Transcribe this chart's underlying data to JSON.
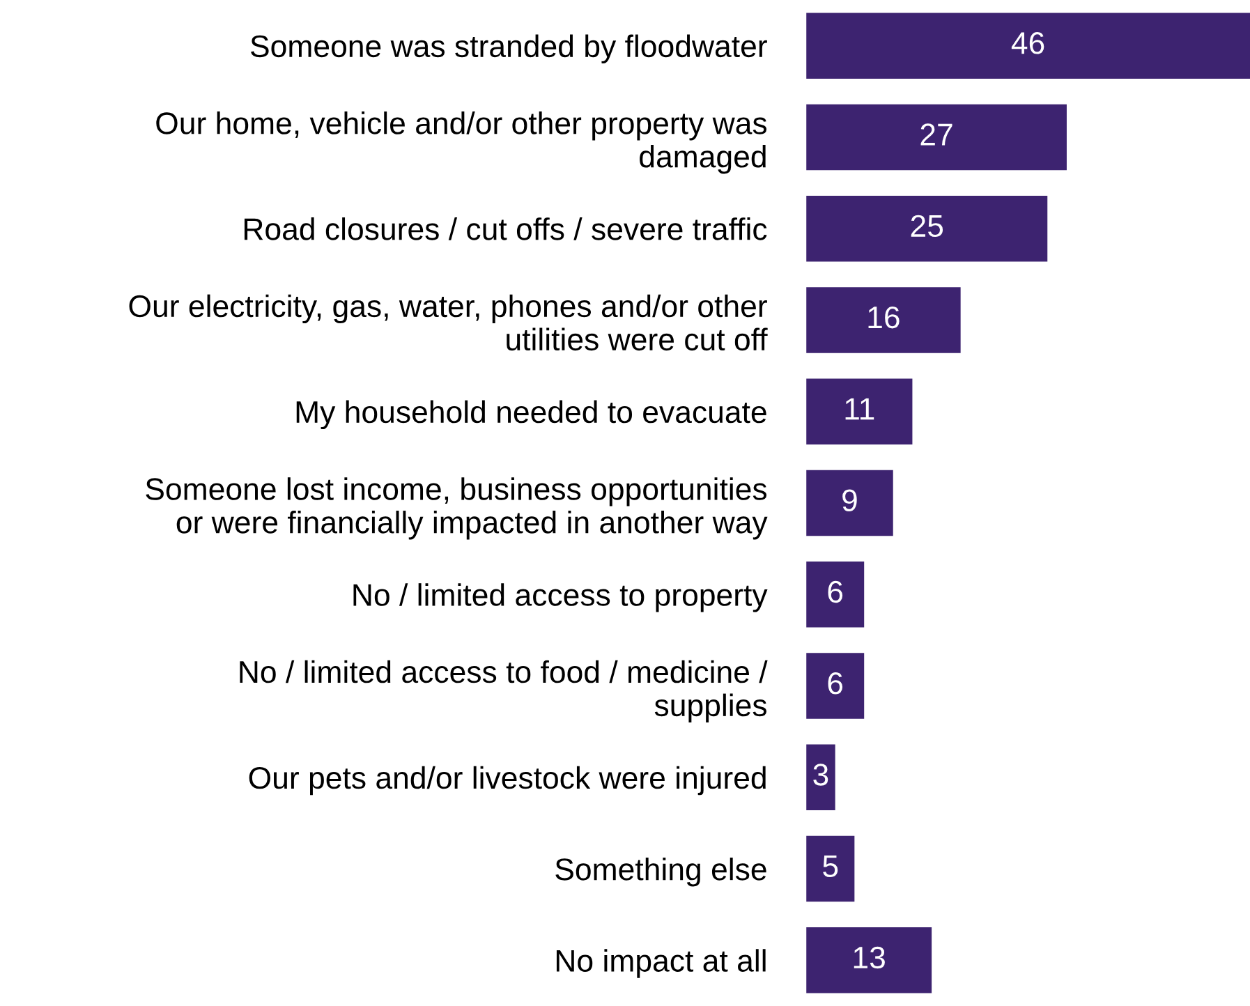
{
  "chart_data": {
    "type": "bar",
    "orientation": "horizontal",
    "categories": [
      "Someone was stranded by floodwater",
      "Our home, vehicle and/or other property was\ndamaged",
      "Road closures / cut offs / severe traffic",
      "Our electricity, gas, water, phones and/or other\nutilities were cut off",
      "My household needed to evacuate",
      "Someone lost income, business opportunities\nor were financially impacted in another way",
      "No / limited access to property",
      "No / limited access to food / medicine /\nsupplies",
      "Our pets and/or livestock were injured",
      "Something else",
      "No impact at all"
    ],
    "values": [
      46,
      27,
      25,
      16,
      11,
      9,
      6,
      6,
      3,
      5,
      13
    ],
    "color": "#3d2370",
    "data_labels": true,
    "tick_labels": "y",
    "grid": false,
    "legend": false
  }
}
